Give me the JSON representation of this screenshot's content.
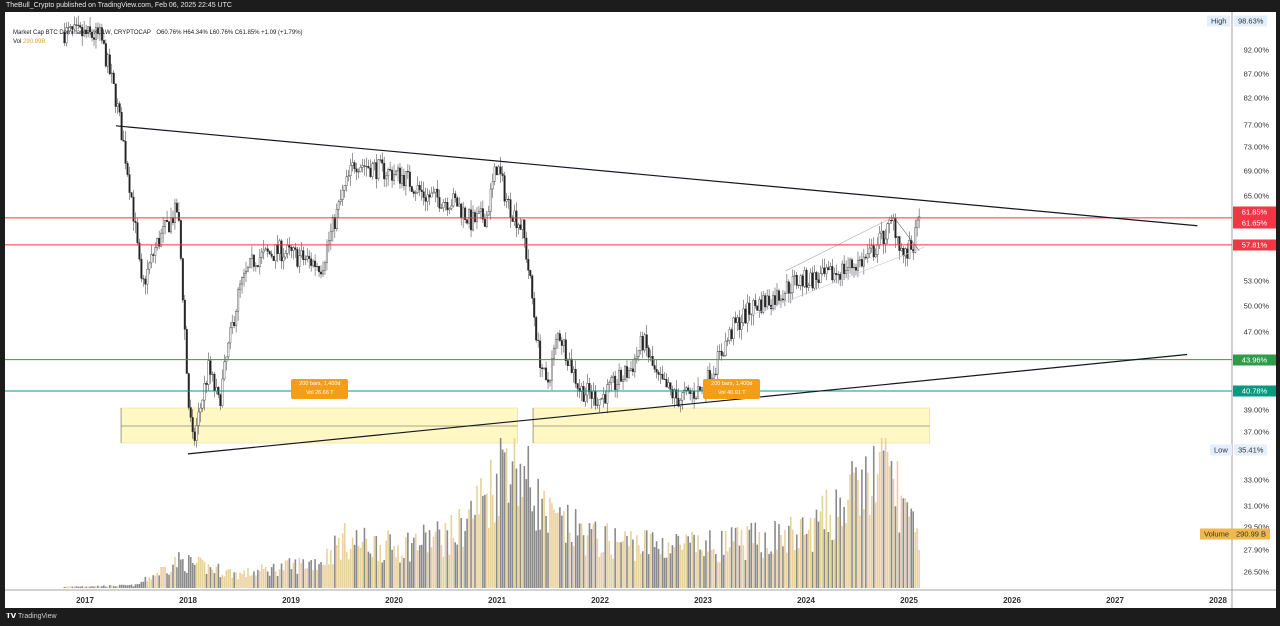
{
  "header": {
    "publisher_line": "TheBull_Crypto published on TradingView.com, Feb 06, 2025 22:45 UTC"
  },
  "legend": {
    "symbol": "Market Cap BTC Dominance, %, 1W, CRYPTOCAP",
    "open": "O60.76%",
    "high": "H64.34%",
    "low": "L60.76%",
    "close": "C61.85%",
    "change": "+1.09 (+1.79%)",
    "vol_label": "Vol",
    "vol_value": "290.99B"
  },
  "footer": {
    "brand": "TradingView"
  },
  "price_axis": {
    "labels": [
      "92.00%",
      "87.00%",
      "82.00%",
      "77.00%",
      "73.00%",
      "69.00%",
      "65.00%",
      "53.00%",
      "50.00%",
      "47.00%",
      "39.00%",
      "37.00%",
      "33.00%",
      "31.00%",
      "29.50%",
      "27.90%",
      "26.50%"
    ],
    "label_values": [
      92,
      87,
      82,
      77,
      73,
      69,
      65,
      53,
      50,
      47,
      39,
      37,
      33,
      31,
      29.5,
      27.9,
      26.5
    ],
    "high": {
      "label": "High",
      "value": "98.63%",
      "num": 98.63
    },
    "low": {
      "label": "Low",
      "value": "35.41%",
      "num": 35.41
    },
    "current": {
      "value": "61.85%",
      "num": 61.85,
      "color": "#f23645"
    },
    "volume": {
      "label": "Volume",
      "value": "290.99 B",
      "color": "#f0b94d"
    }
  },
  "levels": [
    {
      "value": "61.65%",
      "num": 61.65,
      "color": "#f23645"
    },
    {
      "value": "57.81%",
      "num": 57.81,
      "color": "#f23645"
    },
    {
      "value": "43.96%",
      "num": 43.96,
      "color": "#2e9c4a"
    },
    {
      "value": "40.78%",
      "num": 40.78,
      "color": "#089981"
    }
  ],
  "ranges": [
    {
      "bars": "200 bars, 1,400d",
      "vol": "Vol 26.66 T",
      "start": 2017.35,
      "end": 2021.2
    },
    {
      "bars": "200 bars, 1,400d",
      "vol": "Vol 40.91 T",
      "start": 2021.35,
      "end": 2025.2
    }
  ],
  "chart_data": {
    "type": "candlestick",
    "title": "Market Cap BTC Dominance, %, 1W, CRYPTOCAP",
    "x_ticks": [
      "2017",
      "2018",
      "2019",
      "2020",
      "2021",
      "2022",
      "2023",
      "2024",
      "2025",
      "2026",
      "2027",
      "2028"
    ],
    "y_scale": "log",
    "ylim": [
      25.5,
      99
    ],
    "grid": false,
    "close_approx": [
      [
        2016.8,
        96
      ],
      [
        2017.15,
        95
      ],
      [
        2017.3,
        82
      ],
      [
        2017.45,
        65
      ],
      [
        2017.55,
        52
      ],
      [
        2017.7,
        58
      ],
      [
        2017.9,
        63
      ],
      [
        2018.0,
        40
      ],
      [
        2018.05,
        35.8
      ],
      [
        2018.2,
        43
      ],
      [
        2018.3,
        39.5
      ],
      [
        2018.5,
        52
      ],
      [
        2018.65,
        56
      ],
      [
        2018.9,
        57
      ],
      [
        2019.3,
        55
      ],
      [
        2019.5,
        65
      ],
      [
        2019.62,
        70.5
      ],
      [
        2019.8,
        69.5
      ],
      [
        2020.1,
        68
      ],
      [
        2020.3,
        65
      ],
      [
        2020.6,
        64
      ],
      [
        2020.75,
        61
      ],
      [
        2020.9,
        62
      ],
      [
        2021.0,
        70
      ],
      [
        2021.1,
        64
      ],
      [
        2021.25,
        60
      ],
      [
        2021.4,
        45
      ],
      [
        2021.48,
        41
      ],
      [
        2021.6,
        47
      ],
      [
        2021.8,
        41
      ],
      [
        2022.0,
        40
      ],
      [
        2022.3,
        43
      ],
      [
        2022.42,
        46
      ],
      [
        2022.55,
        42
      ],
      [
        2022.75,
        40
      ],
      [
        2023.0,
        41
      ],
      [
        2023.15,
        44
      ],
      [
        2023.3,
        47.5
      ],
      [
        2023.5,
        50
      ],
      [
        2023.7,
        51
      ],
      [
        2023.9,
        53
      ],
      [
        2024.2,
        53.5
      ],
      [
        2024.6,
        56
      ],
      [
        2024.85,
        61
      ],
      [
        2024.95,
        56
      ],
      [
        2025.05,
        58
      ],
      [
        2025.1,
        61.85
      ]
    ],
    "volume_approx_T": [
      [
        2016.8,
        0.01
      ],
      [
        2017.5,
        0.02
      ],
      [
        2017.9,
        0.2
      ],
      [
        2018.5,
        0.1
      ],
      [
        2019.3,
        0.2
      ],
      [
        2019.5,
        0.35
      ],
      [
        2020.0,
        0.3
      ],
      [
        2020.6,
        0.4
      ],
      [
        2021.0,
        0.8
      ],
      [
        2021.1,
        1.05
      ],
      [
        2021.5,
        0.5
      ],
      [
        2022.0,
        0.35
      ],
      [
        2023.0,
        0.3
      ],
      [
        2024.0,
        0.4
      ],
      [
        2024.8,
        0.9
      ],
      [
        2025.1,
        0.29
      ]
    ],
    "trendlines": [
      {
        "from": [
          2017.3,
          76.8
        ],
        "to": [
          2027.8,
          60.5
        ],
        "color": "#131722"
      },
      {
        "from": [
          2018.0,
          35.1
        ],
        "to": [
          2027.7,
          44.5
        ],
        "color": "#131722"
      }
    ],
    "up_color": "#e9d19c",
    "down_color": "#8a8a8a"
  }
}
